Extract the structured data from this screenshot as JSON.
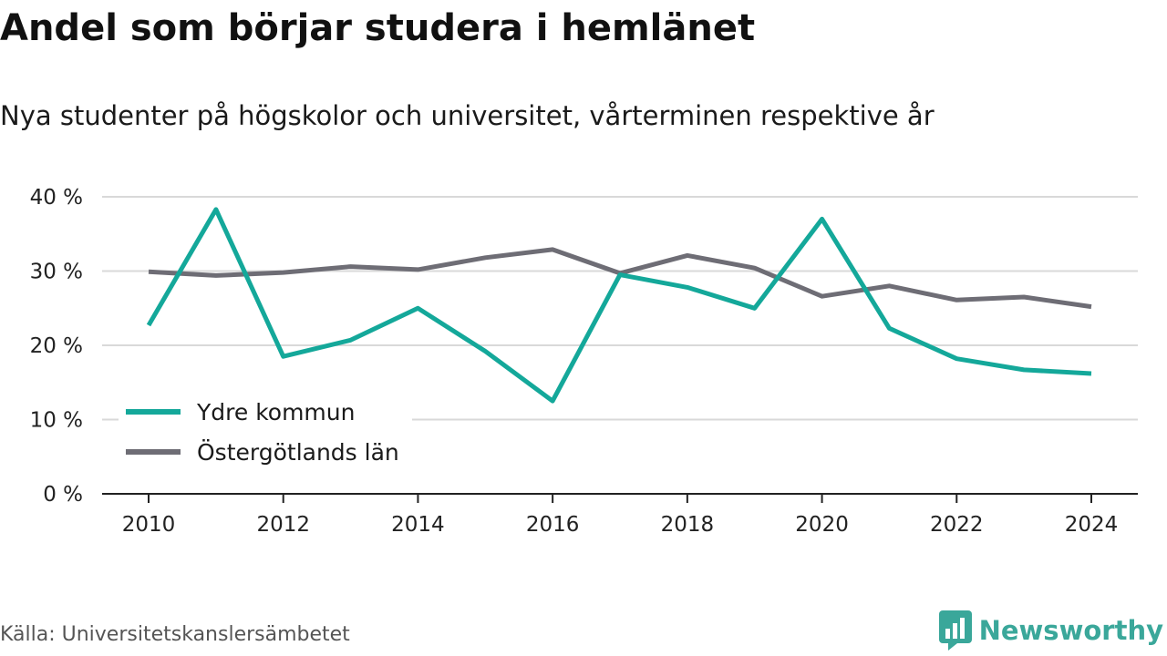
{
  "title": "Andel som börjar studera i hemlänet",
  "subtitle": "Nya studenter på högskolor och universitet, vårterminen respektive år",
  "source": "Källa: Universitetskanslersämbetet",
  "brand": {
    "name": "Newsworthy",
    "icon": "newsworthy-logo-icon"
  },
  "colors": {
    "ydre": "#14a89a",
    "lan": "#6e6d75",
    "grid": "#d9d9d9",
    "axis": "#222222"
  },
  "chart_data": {
    "type": "line",
    "x": [
      2010,
      2011,
      2012,
      2013,
      2014,
      2015,
      2016,
      2017,
      2018,
      2019,
      2020,
      2021,
      2022,
      2023,
      2024
    ],
    "x_ticks": [
      "2010",
      "2012",
      "2014",
      "2016",
      "2018",
      "2020",
      "2022",
      "2024"
    ],
    "y_ticks": [
      "0 %",
      "10 %",
      "20 %",
      "30 %",
      "40 %"
    ],
    "ylim": [
      0,
      40
    ],
    "grid": true,
    "legend_position": "bottom-left",
    "series": [
      {
        "name": "Ydre kommun",
        "color": "#14a89a",
        "values": [
          22.7,
          38.3,
          18.5,
          20.7,
          25.0,
          19.2,
          12.5,
          29.5,
          27.8,
          25.0,
          37.0,
          22.3,
          18.2,
          16.7,
          16.2
        ]
      },
      {
        "name": "Östergötlands län",
        "color": "#6e6d75",
        "values": [
          29.9,
          29.4,
          29.8,
          30.6,
          30.2,
          31.8,
          32.9,
          29.7,
          32.1,
          30.4,
          26.6,
          28.0,
          26.1,
          26.5,
          25.2
        ]
      }
    ]
  }
}
